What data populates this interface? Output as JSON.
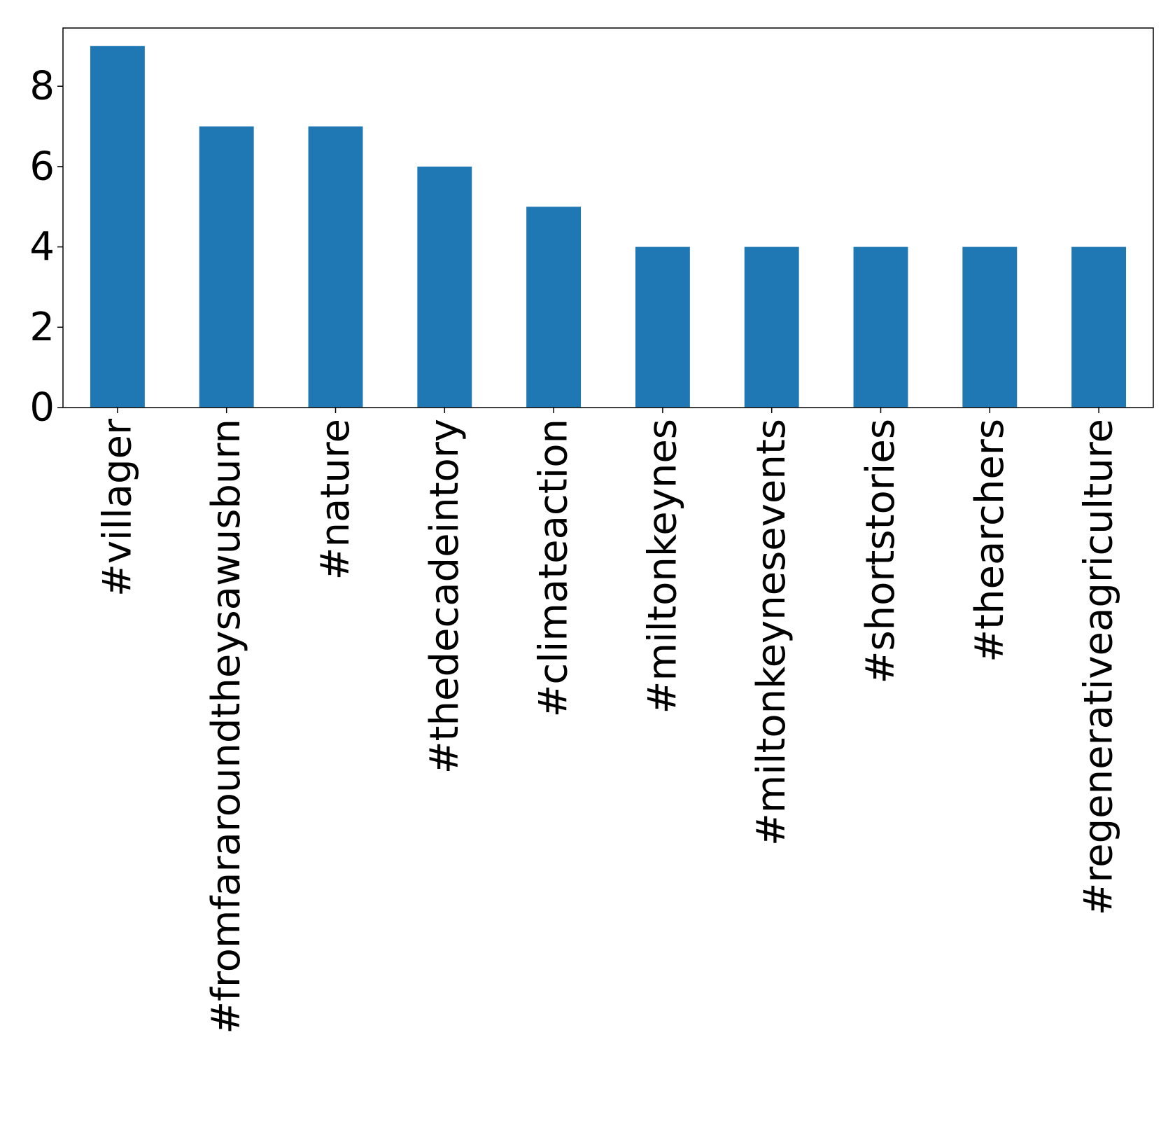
{
  "chart_data": {
    "type": "bar",
    "title": "",
    "xlabel": "",
    "ylabel": "",
    "categories": [
      "#villager",
      "#fromfararoundtheysawusburn",
      "#nature",
      "#thedecadeintory",
      "#climateaction",
      "#miltonkeynes",
      "#miltonkeynesevents",
      "#shortstories",
      "#thearchers",
      "#regenerativeagriculture"
    ],
    "values": [
      9,
      7,
      7,
      6,
      5,
      4,
      4,
      4,
      4,
      4
    ],
    "ylim": [
      0,
      9.45
    ],
    "yticks": [
      0,
      2,
      4,
      6,
      8
    ],
    "ytick_labels": [
      "0",
      "2",
      "4",
      "6",
      "8"
    ],
    "x_tick_rotation": "vertical",
    "grid": false,
    "legend": "none",
    "bar_color": "#1f77b4"
  }
}
